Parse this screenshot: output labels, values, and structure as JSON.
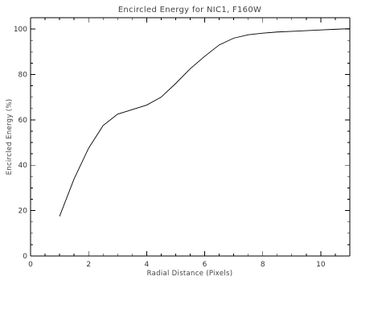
{
  "chart_data": {
    "type": "line",
    "title": "Encircled Energy for NIC1, F160W",
    "xlabel": "Radial Distance (Pixels)",
    "ylabel": "Encircled Energy (%)",
    "xlim": [
      0,
      11
    ],
    "ylim": [
      0,
      105
    ],
    "x_ticks": [
      0,
      2,
      4,
      6,
      8,
      10
    ],
    "y_ticks": [
      0,
      20,
      40,
      60,
      80,
      100
    ],
    "x_minor_step": 0.5,
    "y_minor_step": 5,
    "grid": false,
    "line_color": "#000000",
    "series": [
      {
        "x": [
          1.0,
          1.5,
          2.0,
          2.5,
          3.0,
          3.5,
          4.0,
          4.5,
          5.0,
          5.5,
          6.0,
          6.5,
          7.0,
          7.5,
          8.0,
          8.5,
          9.0,
          9.5,
          10.0,
          10.5,
          11.0
        ],
        "values": [
          17.5,
          34.0,
          47.5,
          57.5,
          62.5,
          64.5,
          66.5,
          70.0,
          76.0,
          82.5,
          88.0,
          93.0,
          96.0,
          97.5,
          98.2,
          98.7,
          99.0,
          99.3,
          99.6,
          99.9,
          100.2
        ]
      }
    ]
  }
}
